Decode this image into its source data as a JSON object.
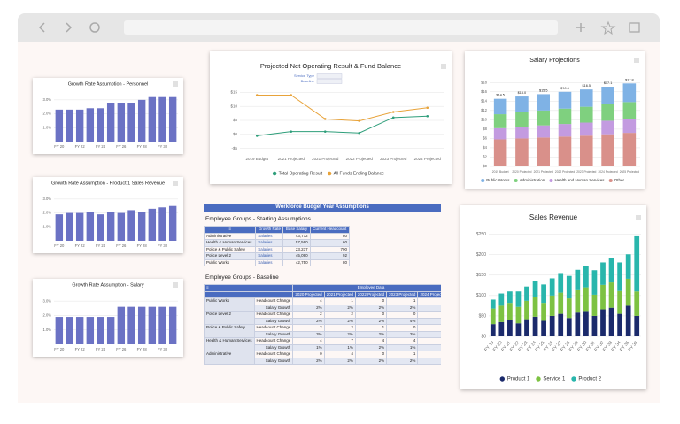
{
  "chart_data": [
    {
      "type": "bar",
      "title": "Growth Rate Assumption - Personnel",
      "categories": [
        "FY 20",
        null,
        "FY 22",
        null,
        "FY 24",
        null,
        "FY 26",
        null,
        "FY 28",
        null,
        "FY 30",
        null
      ],
      "values": [
        2.3,
        2.3,
        2.3,
        2.4,
        2.4,
        2.8,
        2.8,
        2.8,
        3.0,
        3.2,
        3.2,
        3.2
      ],
      "color": "#6b72c4",
      "ylim": [
        0,
        3.5
      ],
      "yticks": [
        {
          "value": 1,
          "label": "1.0%"
        },
        {
          "value": 2,
          "label": "2.0%"
        },
        {
          "value": 3,
          "label": "3.0%"
        }
      ],
      "grid": true
    },
    {
      "type": "bar",
      "title": "Growth Rate Assumption - Product 1 Sales Revenue",
      "categories": [
        "FY 20",
        null,
        "FY 22",
        null,
        "FY 24",
        null,
        "FY 26",
        null,
        "FY 28",
        null,
        "FY 30",
        null
      ],
      "values": [
        1.9,
        2.0,
        2.0,
        2.1,
        1.9,
        2.1,
        2.0,
        2.2,
        2.1,
        2.3,
        2.4,
        2.5
      ],
      "color": "#6b72c4",
      "ylim": [
        0,
        3.5
      ],
      "yticks": [
        {
          "value": 1,
          "label": "1.0%"
        },
        {
          "value": 2,
          "label": "2.0%"
        },
        {
          "value": 3,
          "label": "3.0%"
        }
      ],
      "grid": true
    },
    {
      "type": "bar",
      "title": "Growth Rate Assumption - Salary",
      "categories": [
        "FY 20",
        null,
        "FY 22",
        null,
        "FY 24",
        null,
        "FY 26",
        null,
        "FY 28",
        null,
        "FY 30",
        null
      ],
      "values": [
        1.9,
        1.9,
        1.9,
        1.9,
        1.9,
        1.9,
        2.6,
        2.6,
        2.6,
        2.6,
        2.6,
        2.6
      ],
      "color": "#6b72c4",
      "ylim": [
        0,
        3.5
      ],
      "yticks": [
        {
          "value": 1,
          "label": "1.0%"
        },
        {
          "value": 2,
          "label": "2.0%"
        },
        {
          "value": 3,
          "label": "3.0%"
        }
      ],
      "grid": true
    },
    {
      "type": "line",
      "title": "Projected Net Operating Result & Fund Balance",
      "controls": [
        "Service Type",
        "Baseline"
      ],
      "categories": [
        "2019 Budget",
        "2021 Projected",
        "2021 Projected",
        "2022 Projected",
        "2023 Projected",
        "2024 Projected"
      ],
      "series": [
        {
          "name": "Total Operating Result",
          "color": "#2e9e7a",
          "values": [
            -0.5,
            1,
            1,
            0.5,
            6,
            6.5
          ]
        },
        {
          "name": "All Funds Ending Balance",
          "color": "#e8a33a",
          "values": [
            14,
            14,
            5.5,
            4.8,
            8,
            9.5
          ]
        }
      ],
      "ylim": [
        -7,
        17
      ],
      "yticks": [
        {
          "value": -5,
          "label": "-$5"
        },
        {
          "value": 0,
          "label": "$0"
        },
        {
          "value": 5,
          "label": "$5"
        },
        {
          "value": 10,
          "label": "$10"
        },
        {
          "value": 15,
          "label": "$15"
        }
      ],
      "grid": true
    },
    {
      "type": "bar",
      "stacked": true,
      "title": "Salary Projections",
      "categories": [
        "2019 Budget",
        "2020 Projected",
        "2021 Projected",
        "2022 Projected",
        "2023 Projected",
        "2024 Projected",
        "2025 Projected"
      ],
      "series": [
        {
          "name": "Public Works",
          "color": "#7fb2e5",
          "values": [
            3.3,
            3.4,
            3.5,
            3.6,
            3.7,
            3.8,
            4.0
          ]
        },
        {
          "name": "Administration",
          "color": "#7fd07f",
          "values": [
            3.0,
            3.1,
            3.2,
            3.3,
            3.4,
            3.5,
            3.6
          ]
        },
        {
          "name": "Health and Human Services",
          "color": "#c39be0",
          "values": [
            2.4,
            2.5,
            2.6,
            2.7,
            2.8,
            2.9,
            3.0
          ]
        },
        {
          "name": "Other",
          "color": "#d9908a",
          "values": [
            5.8,
            6.0,
            6.2,
            6.4,
            6.6,
            6.9,
            7.2
          ]
        }
      ],
      "total_labels": [
        "$14.5",
        "$15.0",
        "$15.5",
        "$16.0",
        "$16.5",
        "$17.1",
        "$17.8"
      ],
      "ylim": [
        0,
        19
      ],
      "yticks": [
        {
          "value": 0,
          "label": "$0"
        },
        {
          "value": 2,
          "label": "$2"
        },
        {
          "value": 4,
          "label": "$4"
        },
        {
          "value": 6,
          "label": "$6"
        },
        {
          "value": 8,
          "label": "$8"
        },
        {
          "value": 10,
          "label": "$10"
        },
        {
          "value": 12,
          "label": "$12"
        },
        {
          "value": 14,
          "label": "$14"
        },
        {
          "value": 16,
          "label": "$16"
        },
        {
          "value": 18,
          "label": "$18"
        }
      ],
      "grid": true
    },
    {
      "type": "bar",
      "stacked": true,
      "title": "Sales Revenue",
      "categories": [
        "FY 19",
        "FY 20",
        "FY 21",
        "FY 22",
        "FY 23",
        "FY 24",
        "FY 25",
        "FY 26",
        "FY 27",
        "FY 28",
        "FY 29",
        "FY 30",
        "FY 31",
        "FY 32",
        "FY 33",
        "FY 34",
        "FY 35",
        "FY 36"
      ],
      "series": [
        {
          "name": "Product 1",
          "color": "#1b2a6b",
          "values": [
            30,
            35,
            40,
            32,
            42,
            48,
            38,
            50,
            55,
            45,
            58,
            62,
            50,
            66,
            70,
            55,
            75,
            50
          ]
        },
        {
          "name": "Service 1",
          "color": "#7dc242",
          "values": [
            38,
            40,
            42,
            40,
            45,
            48,
            44,
            50,
            52,
            48,
            55,
            58,
            52,
            60,
            62,
            56,
            66,
            60
          ]
        },
        {
          "name": "Product 2",
          "color": "#29b6ac",
          "values": [
            22,
            30,
            28,
            38,
            35,
            40,
            45,
            42,
            48,
            55,
            50,
            52,
            60,
            55,
            60,
            70,
            60,
            135
          ]
        }
      ],
      "ylim": [
        0,
        260
      ],
      "yticks": [
        {
          "value": 0,
          "label": "$0"
        },
        {
          "value": 50,
          "label": "$50"
        },
        {
          "value": 100,
          "label": "$100"
        },
        {
          "value": 150,
          "label": "$150"
        },
        {
          "value": 200,
          "label": "$200"
        },
        {
          "value": 250,
          "label": "$250"
        }
      ],
      "grid": true
    }
  ],
  "tables": {
    "title": "Workforce Budget Year Assumptions",
    "starting": {
      "title": "Employee Groups - Starting Assumptions",
      "header": [
        "Growth Rate",
        "Base Salary",
        "Current Headcount"
      ],
      "rows": [
        [
          "Administrative",
          "Salaries",
          "43,772",
          "80"
        ],
        [
          "Health & Human Services",
          "Salaries",
          "57,560",
          "60"
        ],
        [
          "Police & Public Safety",
          "Salaries",
          "23,237",
          "790"
        ],
        [
          "Police Level 2",
          "Salaries",
          "45,090",
          "92"
        ],
        [
          "Public Works",
          "Salaries",
          "42,750",
          "80"
        ]
      ]
    },
    "baseline": {
      "title": "Employee Groups - Baseline",
      "group_header": "Employee Data",
      "header": [
        "2020 Projected",
        "2021 Projected",
        "2022 Projected",
        "2023 Projected",
        "2024 Projected"
      ],
      "groups": [
        {
          "name": "Public Works",
          "rows": [
            {
              "measure": "Headcount Change",
              "values": [
                "4",
                "1",
                "0",
                "1",
                "0"
              ]
            },
            {
              "measure": "Salary Growth",
              "values": [
                "2%",
                "2%",
                "2%",
                "2%",
                "2%"
              ]
            }
          ]
        },
        {
          "name": "Police Level 2",
          "rows": [
            {
              "measure": "Headcount Change",
              "values": [
                "2",
                "2",
                "0",
                "0",
                "0"
              ]
            },
            {
              "measure": "Salary Growth",
              "values": [
                "2%",
                "2%",
                "2%",
                "4%",
                "2%"
              ]
            }
          ]
        },
        {
          "name": "Police & Public Safety",
          "rows": [
            {
              "measure": "Headcount Change",
              "values": [
                "2",
                "2",
                "1",
                "0",
                "1"
              ]
            },
            {
              "measure": "Salary Growth",
              "values": [
                "3%",
                "2%",
                "2%",
                "2%",
                "2%"
              ]
            }
          ]
        },
        {
          "name": "Health & Human Services",
          "rows": [
            {
              "measure": "Headcount Change",
              "values": [
                "4",
                "7",
                "4",
                "4",
                "4"
              ]
            },
            {
              "measure": "Salary Growth",
              "values": [
                "1%",
                "1%",
                "2%",
                "1%",
                "2%"
              ]
            }
          ]
        },
        {
          "name": "Administrative",
          "rows": [
            {
              "measure": "Headcount Change",
              "values": [
                "0",
                "4",
                "0",
                "1",
                "0"
              ]
            },
            {
              "measure": "Salary Growth",
              "values": [
                "2%",
                "2%",
                "2%",
                "2%",
                "2%"
              ]
            }
          ]
        }
      ]
    }
  }
}
